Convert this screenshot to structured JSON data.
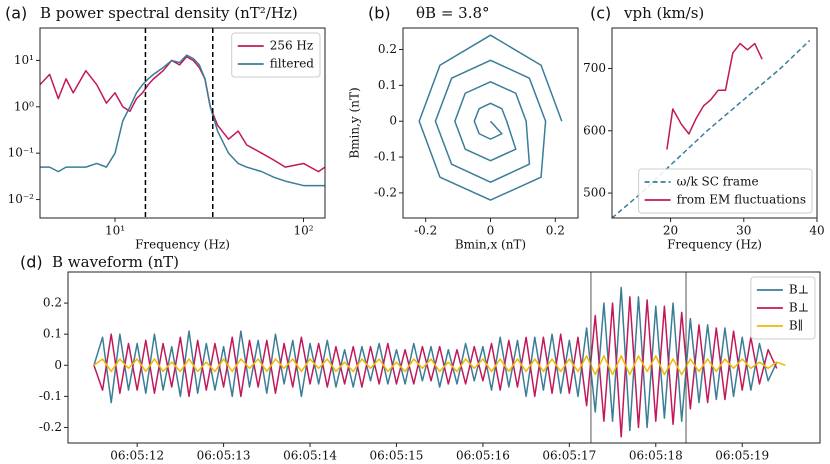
{
  "chart_data": [
    {
      "type": "line",
      "label": "(a)",
      "title": "B power spectral density (nT²/Hz)",
      "x_label": "Frequency (Hz)",
      "xscale": "log",
      "yscale": "log",
      "xlim": [
        4,
        130
      ],
      "ylim": [
        0.004,
        50
      ],
      "xticks": [
        {
          "value": 10,
          "label": "10¹"
        },
        {
          "value": 100,
          "label": "10²"
        }
      ],
      "yticks": [
        {
          "value": 0.01,
          "label": "10⁻²"
        },
        {
          "value": 0.1,
          "label": "10⁻¹"
        },
        {
          "value": 1,
          "label": "10⁰"
        },
        {
          "value": 10,
          "label": "10¹"
        }
      ],
      "vlines": [
        14.5,
        33
      ],
      "vline_style": "dashed",
      "legend": "upper right",
      "x": [
        4,
        4.5,
        5,
        5.5,
        6,
        7,
        8,
        9,
        10,
        11,
        12,
        13,
        14,
        15,
        16,
        18,
        20,
        22,
        24,
        26,
        28,
        30,
        32,
        35,
        40,
        45,
        50,
        60,
        70,
        80,
        100,
        120,
        130
      ],
      "series": [
        {
          "name": "256 Hz",
          "color": "#c2185b",
          "values": [
            3,
            5,
            1.5,
            4,
            2,
            6,
            3,
            1.2,
            2,
            1,
            0.8,
            1.5,
            2,
            3,
            4,
            6,
            10,
            8,
            12,
            10,
            7,
            4,
            1,
            0.4,
            0.2,
            0.3,
            0.15,
            0.1,
            0.07,
            0.05,
            0.06,
            0.04,
            0.05
          ]
        },
        {
          "name": "filtered",
          "color": "#3a7d99",
          "values": [
            0.05,
            0.05,
            0.04,
            0.05,
            0.05,
            0.05,
            0.06,
            0.05,
            0.1,
            0.5,
            1,
            2,
            3,
            4,
            5,
            7,
            10,
            9,
            13,
            11,
            8,
            4,
            1,
            0.3,
            0.1,
            0.06,
            0.05,
            0.04,
            0.03,
            0.025,
            0.02,
            0.02,
            0.02
          ]
        }
      ]
    },
    {
      "type": "line",
      "label": "(b)",
      "title": "θB = 3.8°",
      "x_label": "Bmin,x (nT)",
      "y_label": "Bmin,y (nT)",
      "xlim": [
        -0.27,
        0.27
      ],
      "ylim": [
        -0.27,
        0.26
      ],
      "xticks": [
        -0.2,
        0,
        0.2
      ],
      "yticks": [
        -0.2,
        -0.1,
        0,
        0.1,
        0.2
      ],
      "series": [
        {
          "color": "#3a7d99",
          "x": [
            0.22,
            0.156,
            0,
            -0.156,
            -0.22,
            -0.156,
            0,
            0.156,
            0.17,
            0.12,
            0,
            -0.12,
            -0.17,
            -0.12,
            0,
            0.12,
            0.11,
            0.078,
            0,
            -0.078,
            -0.11,
            -0.078,
            0,
            0.078,
            0.05,
            0.035,
            0,
            -0.035,
            -0.05,
            -0.035,
            0,
            0.035,
            0
          ],
          "values": [
            0,
            0.156,
            0.24,
            0.156,
            0,
            -0.156,
            -0.22,
            -0.156,
            0,
            0.12,
            0.17,
            0.12,
            0,
            -0.12,
            -0.17,
            -0.12,
            0,
            0.078,
            0.11,
            0.078,
            0,
            -0.078,
            -0.11,
            -0.078,
            0,
            0.035,
            0.05,
            0.035,
            0,
            -0.035,
            -0.05,
            -0.035,
            0
          ]
        }
      ]
    },
    {
      "type": "line",
      "label": "(c)",
      "title": "vph (km/s)",
      "x_label": "Frequency (Hz)",
      "xlim": [
        12,
        40
      ],
      "ylim": [
        460,
        765
      ],
      "xticks": [
        20,
        30,
        40
      ],
      "yticks": [
        500,
        600,
        700
      ],
      "legend": "lower right",
      "series": [
        {
          "name": "ω/k SC frame",
          "color": "#3a7d99",
          "dash": true,
          "x": [
            12,
            16,
            20,
            25,
            30,
            35,
            39
          ],
          "values": [
            460,
            500,
            545,
            600,
            650,
            700,
            745
          ]
        },
        {
          "name": "from EM fluctuations",
          "color": "#c2185b",
          "x": [
            19.5,
            20.3,
            21.5,
            22.5,
            23.5,
            24.5,
            25.5,
            26.5,
            27.5,
            28.5,
            29.5,
            30.5,
            31.5,
            32.5
          ],
          "values": [
            570,
            635,
            610,
            595,
            620,
            640,
            650,
            665,
            665,
            725,
            740,
            730,
            740,
            715
          ]
        }
      ]
    },
    {
      "type": "line",
      "label": "(d)",
      "title": "B waveform (nT)",
      "xlim": [
        11.2,
        19.9
      ],
      "ylim": [
        -0.25,
        0.3
      ],
      "legend": "upper right",
      "xticks": [
        {
          "value": 12,
          "label": "06:05:12"
        },
        {
          "value": 13,
          "label": "06:05:13"
        },
        {
          "value": 14,
          "label": "06:05:14"
        },
        {
          "value": 15,
          "label": "06:05:15"
        },
        {
          "value": 16,
          "label": "06:05:16"
        },
        {
          "value": 17,
          "label": "06:05:17"
        },
        {
          "value": 18,
          "label": "06:05:18"
        },
        {
          "value": 19,
          "label": "06:05:19"
        }
      ],
      "yticks": [
        -0.2,
        -0.1,
        0,
        0.1,
        0.2
      ],
      "vlines": [
        17.25,
        18.35
      ],
      "vline_style": "solid",
      "x": [
        11.5,
        11.6,
        11.7,
        11.8,
        11.9,
        12,
        12.1,
        12.2,
        12.3,
        12.4,
        12.5,
        12.6,
        12.7,
        12.8,
        12.9,
        13,
        13.1,
        13.2,
        13.3,
        13.4,
        13.5,
        13.6,
        13.7,
        13.8,
        13.9,
        14,
        14.1,
        14.2,
        14.3,
        14.4,
        14.5,
        14.6,
        14.7,
        14.8,
        14.9,
        15,
        15.1,
        15.2,
        15.3,
        15.4,
        15.5,
        15.6,
        15.7,
        15.8,
        15.9,
        16,
        16.1,
        16.2,
        16.3,
        16.4,
        16.5,
        16.6,
        16.7,
        16.8,
        16.9,
        17,
        17.1,
        17.2,
        17.3,
        17.4,
        17.5,
        17.6,
        17.7,
        17.8,
        17.9,
        18,
        18.1,
        18.2,
        18.3,
        18.4,
        18.5,
        18.6,
        18.7,
        18.8,
        18.9,
        19,
        19.1,
        19.2,
        19.3,
        19.4,
        19.5
      ],
      "series": [
        {
          "name": "B⊥",
          "color": "#3a7d99",
          "values": [
            0,
            0.09,
            -0.12,
            0.1,
            -0.08,
            0.07,
            -0.09,
            0.1,
            -0.08,
            0.06,
            -0.1,
            0.11,
            -0.09,
            0.07,
            -0.08,
            0.06,
            -0.1,
            0.11,
            -0.07,
            0.08,
            -0.09,
            0.1,
            -0.06,
            0.08,
            -0.1,
            0.07,
            -0.06,
            0.08,
            -0.07,
            0.05,
            -0.07,
            0.06,
            -0.05,
            0.07,
            -0.06,
            0.05,
            -0.06,
            0.07,
            -0.05,
            0.06,
            -0.07,
            0.05,
            -0.06,
            0.07,
            -0.05,
            0.06,
            -0.08,
            0.09,
            -0.07,
            0.08,
            -0.1,
            0.09,
            -0.08,
            0.1,
            -0.09,
            0.08,
            -0.1,
            0.12,
            -0.15,
            0.2,
            -0.18,
            0.25,
            -0.21,
            0.22,
            -0.2,
            0.19,
            -0.17,
            0.2,
            -0.18,
            0.15,
            -0.12,
            0.13,
            -0.11,
            0.12,
            -0.1,
            0.09,
            -0.08,
            0.07,
            -0.05,
            0.01,
            null
          ]
        },
        {
          "name": "B⊥",
          "color": "#c2185b",
          "values": [
            0,
            -0.08,
            0.1,
            -0.09,
            0.07,
            -0.08,
            0.08,
            -0.09,
            0.07,
            -0.07,
            0.09,
            -0.1,
            0.08,
            -0.08,
            0.07,
            -0.07,
            0.09,
            -0.1,
            0.08,
            -0.07,
            0.08,
            -0.09,
            0.07,
            -0.07,
            0.09,
            -0.06,
            0.07,
            -0.07,
            0.06,
            -0.06,
            0.06,
            -0.07,
            0.06,
            -0.06,
            0.07,
            -0.06,
            0.05,
            -0.06,
            0.06,
            -0.05,
            0.06,
            -0.06,
            0.05,
            -0.06,
            0.06,
            -0.05,
            0.07,
            -0.08,
            0.08,
            -0.07,
            0.09,
            -0.1,
            0.09,
            -0.09,
            0.1,
            -0.09,
            0.09,
            -0.13,
            0.16,
            -0.18,
            0.2,
            -0.23,
            0.22,
            -0.2,
            0.21,
            -0.18,
            0.19,
            -0.19,
            0.17,
            -0.14,
            0.13,
            -0.12,
            0.12,
            -0.11,
            0.11,
            -0.08,
            0.09,
            -0.06,
            0.05,
            -0.01,
            null
          ]
        },
        {
          "name": "B∥",
          "color": "#f5b700",
          "values": [
            0,
            0.02,
            -0.02,
            0.02,
            -0.01,
            0.02,
            -0.02,
            0.02,
            -0.02,
            0.01,
            -0.02,
            0.02,
            -0.02,
            0.01,
            -0.02,
            0.02,
            -0.02,
            0.02,
            -0.01,
            0.02,
            -0.02,
            0.02,
            -0.01,
            0.02,
            -0.02,
            0.02,
            -0.01,
            0.02,
            -0.02,
            0.01,
            -0.02,
            0.02,
            -0.01,
            0.02,
            -0.02,
            0.01,
            -0.02,
            0.02,
            -0.01,
            0.02,
            -0.02,
            0.01,
            -0.02,
            0.02,
            -0.01,
            0.02,
            -0.02,
            0.02,
            -0.02,
            0.02,
            -0.02,
            0.02,
            -0.02,
            0.02,
            -0.02,
            0.02,
            -0.02,
            0.03,
            -0.03,
            0.03,
            -0.03,
            0.03,
            -0.03,
            0.03,
            -0.02,
            0.03,
            -0.03,
            0.02,
            -0.03,
            0.02,
            -0.02,
            0.02,
            -0.02,
            0.02,
            -0.01,
            0.02,
            -0.01,
            0.01,
            -0.01,
            0.01,
            0
          ]
        }
      ]
    }
  ]
}
